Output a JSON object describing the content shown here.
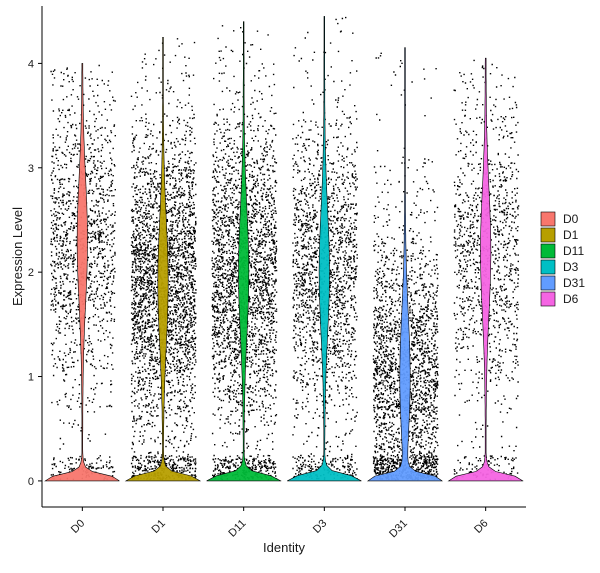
{
  "chart_data": {
    "type": "violin",
    "categories": [
      "D0",
      "D1",
      "D11",
      "D3",
      "D31",
      "D6"
    ],
    "colors": [
      "#F8766D",
      "#B79F00",
      "#00BA38",
      "#00BFC4",
      "#619CFF",
      "#F564E3"
    ],
    "max_values": [
      4.0,
      4.25,
      4.4,
      4.45,
      4.15,
      4.05
    ],
    "approx_modes": [
      2.3,
      1.9,
      2.0,
      2.0,
      1.0,
      2.2
    ],
    "ylim": [
      -0.25,
      4.55
    ],
    "yticks": [
      "0",
      "1",
      "2",
      "3",
      "4"
    ],
    "xlabel": "Identity",
    "ylabel": "Expression Level",
    "grid": false,
    "legend_position": "right",
    "legend": [
      "D0",
      "D1",
      "D11",
      "D3",
      "D31",
      "D6"
    ]
  }
}
